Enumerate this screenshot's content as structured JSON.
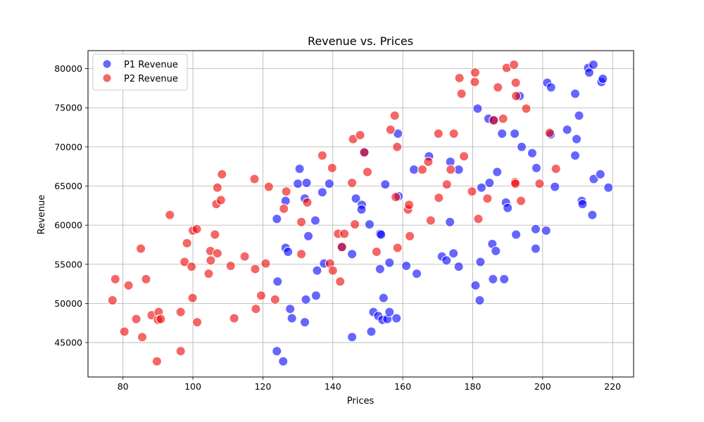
{
  "chart_data": {
    "type": "scatter",
    "title": "Revenue vs. Prices",
    "xlabel": "Prices",
    "ylabel": "Revenue",
    "xlim": [
      70,
      226
    ],
    "ylim": [
      40600,
      82300
    ],
    "xticks": [
      80,
      100,
      120,
      140,
      160,
      180,
      200,
      220
    ],
    "yticks": [
      45000,
      50000,
      55000,
      60000,
      65000,
      70000,
      75000,
      80000
    ],
    "grid": true,
    "legend_position": "top-left",
    "series": [
      {
        "name": "P1 Revenue",
        "color": "#0000ff",
        "points": [
          [
            124,
            60800
          ],
          [
            126.5,
            63100
          ],
          [
            130,
            65300
          ],
          [
            130.5,
            67200
          ],
          [
            132,
            63400
          ],
          [
            132.5,
            65400
          ],
          [
            133,
            58600
          ],
          [
            135,
            60600
          ],
          [
            135.5,
            54200
          ],
          [
            137,
            64200
          ],
          [
            137.5,
            55100
          ],
          [
            139,
            65300
          ],
          [
            126.5,
            57100
          ],
          [
            127.2,
            56600
          ],
          [
            127.8,
            49300
          ],
          [
            128.3,
            48100
          ],
          [
            132,
            47600
          ],
          [
            132.3,
            50500
          ],
          [
            135.2,
            51000
          ],
          [
            124.2,
            52800
          ],
          [
            124,
            43900
          ],
          [
            125.8,
            42600
          ],
          [
            145.5,
            45700
          ],
          [
            145.5,
            56300
          ],
          [
            146.6,
            63400
          ],
          [
            148.3,
            62600
          ],
          [
            148.2,
            62000
          ],
          [
            150.5,
            60100
          ],
          [
            151,
            46400
          ],
          [
            151.6,
            48900
          ],
          [
            153,
            48400
          ],
          [
            153.5,
            54400
          ],
          [
            153.5,
            58900
          ],
          [
            153.8,
            58800
          ],
          [
            154.2,
            47900
          ],
          [
            154.5,
            50700
          ],
          [
            155,
            65200
          ],
          [
            155.6,
            48000
          ],
          [
            156.2,
            48900
          ],
          [
            156.2,
            55200
          ],
          [
            158.2,
            48100
          ],
          [
            158.6,
            71700
          ],
          [
            158.8,
            63700
          ],
          [
            161,
            54800
          ],
          [
            163.2,
            67100
          ],
          [
            164,
            53800
          ],
          [
            167.5,
            68800
          ],
          [
            171.2,
            56000
          ],
          [
            172.5,
            55500
          ],
          [
            173.5,
            60400
          ],
          [
            173.6,
            68100
          ],
          [
            174.5,
            56400
          ],
          [
            176,
            67100
          ],
          [
            176,
            54700
          ],
          [
            180.8,
            52300
          ],
          [
            181.4,
            74900
          ],
          [
            182,
            50400
          ],
          [
            182.2,
            55300
          ],
          [
            182.5,
            64800
          ],
          [
            184.5,
            73600
          ],
          [
            184.8,
            65400
          ],
          [
            185.6,
            57600
          ],
          [
            185.8,
            53100
          ],
          [
            186.6,
            56700
          ],
          [
            187,
            66800
          ],
          [
            188.4,
            71700
          ],
          [
            189,
            53100
          ],
          [
            189.5,
            62900
          ],
          [
            190,
            62200
          ],
          [
            192,
            71700
          ],
          [
            192.4,
            58800
          ],
          [
            193.4,
            76500
          ],
          [
            194,
            70000
          ],
          [
            197,
            69200
          ],
          [
            198,
            57000
          ],
          [
            198.2,
            67300
          ],
          [
            198,
            59500
          ],
          [
            201,
            59300
          ],
          [
            201.3,
            78200
          ],
          [
            202.3,
            71600
          ],
          [
            202.4,
            77600
          ],
          [
            203.5,
            64900
          ],
          [
            207,
            72200
          ],
          [
            209.3,
            76800
          ],
          [
            209.3,
            68900
          ],
          [
            209.7,
            71000
          ],
          [
            210.4,
            74000
          ],
          [
            211.2,
            63100
          ],
          [
            211.4,
            62700
          ],
          [
            213,
            80100
          ],
          [
            213.3,
            79500
          ],
          [
            214.2,
            61300
          ],
          [
            214.5,
            80500
          ],
          [
            214.6,
            65900
          ],
          [
            216.5,
            66500
          ],
          [
            216.8,
            78300
          ],
          [
            217.2,
            78700
          ],
          [
            218.8,
            64800
          ],
          [
            186,
            73400
          ],
          [
            142.6,
            57200
          ],
          [
            149,
            69300
          ]
        ]
      },
      {
        "name": "P2 Revenue",
        "color": "#ee0000",
        "points": [
          [
            77,
            50400
          ],
          [
            77.8,
            53100
          ],
          [
            80.4,
            46400
          ],
          [
            81.6,
            52300
          ],
          [
            83.8,
            48000
          ],
          [
            85.1,
            57000
          ],
          [
            85.5,
            45700
          ],
          [
            86.6,
            53100
          ],
          [
            88.2,
            48500
          ],
          [
            89.7,
            42600
          ],
          [
            90.2,
            48900
          ],
          [
            90,
            47900
          ],
          [
            90.8,
            48000
          ],
          [
            93.4,
            61300
          ],
          [
            96.5,
            48900
          ],
          [
            96.5,
            43900
          ],
          [
            97.6,
            55300
          ],
          [
            98.3,
            57700
          ],
          [
            99.6,
            54700
          ],
          [
            99.9,
            50700
          ],
          [
            100,
            59300
          ],
          [
            101.1,
            59500
          ],
          [
            101.2,
            47600
          ],
          [
            104.5,
            53800
          ],
          [
            105,
            56700
          ],
          [
            105.1,
            55500
          ],
          [
            106.3,
            58800
          ],
          [
            106.7,
            62700
          ],
          [
            107,
            56400
          ],
          [
            107,
            64800
          ],
          [
            108,
            63200
          ],
          [
            108.3,
            66500
          ],
          [
            110.8,
            54800
          ],
          [
            111.8,
            48100
          ],
          [
            114.8,
            56000
          ],
          [
            117.6,
            65900
          ],
          [
            117.8,
            54400
          ],
          [
            118,
            49300
          ],
          [
            119.5,
            51000
          ],
          [
            120.8,
            55100
          ],
          [
            121.7,
            64900
          ],
          [
            123.5,
            50500
          ],
          [
            126,
            62100
          ],
          [
            126.7,
            64300
          ],
          [
            131,
            60400
          ],
          [
            131,
            56300
          ],
          [
            132.7,
            62900
          ],
          [
            137,
            68900
          ],
          [
            139.2,
            55100
          ],
          [
            139.8,
            67300
          ],
          [
            140,
            54200
          ],
          [
            141.5,
            58900
          ],
          [
            142.1,
            52800
          ],
          [
            142.6,
            57200
          ],
          [
            143.3,
            58900
          ],
          [
            145.5,
            65400
          ],
          [
            145.8,
            71000
          ],
          [
            146.3,
            60100
          ],
          [
            147.8,
            71500
          ],
          [
            149,
            69300
          ],
          [
            149.9,
            66800
          ],
          [
            152.5,
            56600
          ],
          [
            156.5,
            72200
          ],
          [
            157.7,
            74000
          ],
          [
            158,
            63600
          ],
          [
            158.4,
            70000
          ],
          [
            158.5,
            57100
          ],
          [
            161.5,
            62000
          ],
          [
            161.8,
            62600
          ],
          [
            162,
            58600
          ],
          [
            165.6,
            67100
          ],
          [
            167.3,
            68100
          ],
          [
            168,
            60600
          ],
          [
            170.2,
            71700
          ],
          [
            170.3,
            63500
          ],
          [
            172.6,
            65200
          ],
          [
            173.7,
            67100
          ],
          [
            174.6,
            71700
          ],
          [
            176.2,
            78800
          ],
          [
            176.8,
            76800
          ],
          [
            177.5,
            68800
          ],
          [
            179.8,
            64300
          ],
          [
            180.6,
            78300
          ],
          [
            180.7,
            79500
          ],
          [
            181.6,
            60800
          ],
          [
            184.2,
            63400
          ],
          [
            186,
            73400
          ],
          [
            187.2,
            77600
          ],
          [
            188.7,
            73600
          ],
          [
            189.7,
            80100
          ],
          [
            191.8,
            80500
          ],
          [
            192.1,
            65500
          ],
          [
            192.2,
            65300
          ],
          [
            192.3,
            78200
          ],
          [
            192.4,
            76500
          ],
          [
            193.8,
            63100
          ],
          [
            195.3,
            74900
          ],
          [
            199.1,
            65300
          ],
          [
            202,
            71800
          ],
          [
            203.8,
            67200
          ]
        ]
      }
    ]
  }
}
